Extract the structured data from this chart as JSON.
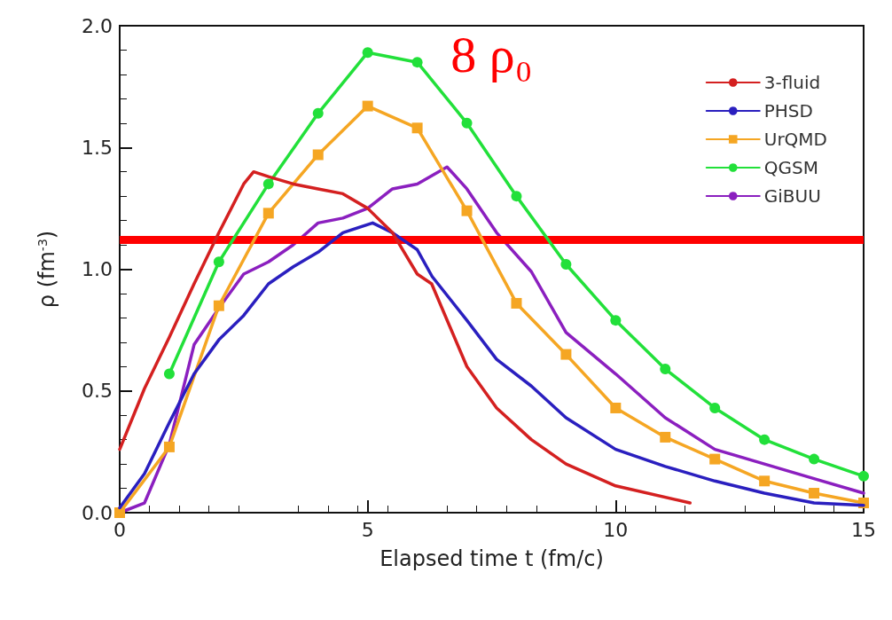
{
  "chart_data": {
    "type": "line",
    "xlabel": "Elapsed time t (fm/c)",
    "ylabel": "ρ (fm$^{-3}$)",
    "xlim": [
      0,
      15
    ],
    "xticks": [
      0,
      5,
      10,
      15
    ],
    "ylim": [
      0,
      2
    ],
    "yticks": [
      {
        "value": 0,
        "label": "0.0"
      },
      {
        "value": 0.5,
        "label": "0.5"
      },
      {
        "value": 1,
        "label": "1.0"
      },
      {
        "value": 1.5,
        "label": "1.5"
      },
      {
        "value": 2,
        "label": "2.0"
      }
    ],
    "grid": false,
    "legend": "top right",
    "line_style": "solid",
    "ref_lines": [
      {
        "axis": "y",
        "value": 1.12,
        "label": "8 ρ₀",
        "color": "#ff0000"
      }
    ],
    "series": [
      {
        "name": "3-fluid",
        "color": "#d42020",
        "marker": "none",
        "x": [
          0,
          0.5,
          1,
          1.5,
          2,
          2.5,
          2.7,
          3,
          3.5,
          4,
          4.5,
          5,
          5.5,
          6,
          6.29,
          7,
          7.6,
          8.3,
          9,
          10,
          11.5
        ],
        "values": [
          0.26,
          0.51,
          0.72,
          0.94,
          1.15,
          1.35,
          1.4,
          1.38,
          1.35,
          1.33,
          1.31,
          1.25,
          1.15,
          0.98,
          0.94,
          0.6,
          0.43,
          0.3,
          0.2,
          0.11,
          0.04
        ]
      },
      {
        "name": "PHSD",
        "color": "#2a1fbf",
        "marker": "none",
        "x": [
          0,
          0.5,
          1,
          1.5,
          2,
          2.5,
          3,
          3.5,
          4,
          4.5,
          5.1,
          5.5,
          6,
          6.3,
          7,
          7.6,
          8.3,
          9,
          10,
          11,
          12,
          13,
          14,
          15
        ],
        "values": [
          0.02,
          0.16,
          0.37,
          0.57,
          0.71,
          0.81,
          0.94,
          1.01,
          1.07,
          1.15,
          1.19,
          1.15,
          1.08,
          0.97,
          0.79,
          0.63,
          0.52,
          0.39,
          0.26,
          0.19,
          0.13,
          0.08,
          0.04,
          0.03
        ]
      },
      {
        "name": "UrQMD",
        "color": "#f5a623",
        "marker": "square",
        "x": [
          0,
          1,
          2,
          3,
          4,
          5,
          6,
          7,
          8,
          9,
          10,
          11,
          12,
          13,
          14,
          15
        ],
        "values": [
          0,
          0.27,
          0.85,
          1.23,
          1.47,
          1.67,
          1.58,
          1.24,
          0.86,
          0.65,
          0.43,
          0.31,
          0.22,
          0.13,
          0.08,
          0.04
        ]
      },
      {
        "name": "QGSM",
        "color": "#22e03a",
        "marker": "circle",
        "x": [
          1,
          2,
          3,
          4,
          5,
          6,
          7,
          8,
          9,
          10,
          11,
          12,
          13,
          14,
          15
        ],
        "values": [
          0.57,
          1.03,
          1.35,
          1.64,
          1.89,
          1.85,
          1.6,
          1.3,
          1.02,
          0.79,
          0.59,
          0.43,
          0.3,
          0.22,
          0.15
        ]
      },
      {
        "name": "GiBUU",
        "color": "#8b1fbf",
        "marker": "none",
        "x": [
          0,
          0.5,
          1,
          1.5,
          2,
          2.5,
          3,
          3.5,
          4,
          4.5,
          5,
          5.5,
          6,
          6.6,
          7,
          7.6,
          8.3,
          9,
          10,
          11,
          12,
          13,
          14,
          15
        ],
        "values": [
          0,
          0.04,
          0.28,
          0.69,
          0.84,
          0.98,
          1.03,
          1.1,
          1.19,
          1.21,
          1.25,
          1.33,
          1.35,
          1.42,
          1.33,
          1.15,
          0.99,
          0.74,
          0.57,
          0.39,
          0.26,
          0.2,
          0.14,
          0.08
        ]
      }
    ]
  }
}
